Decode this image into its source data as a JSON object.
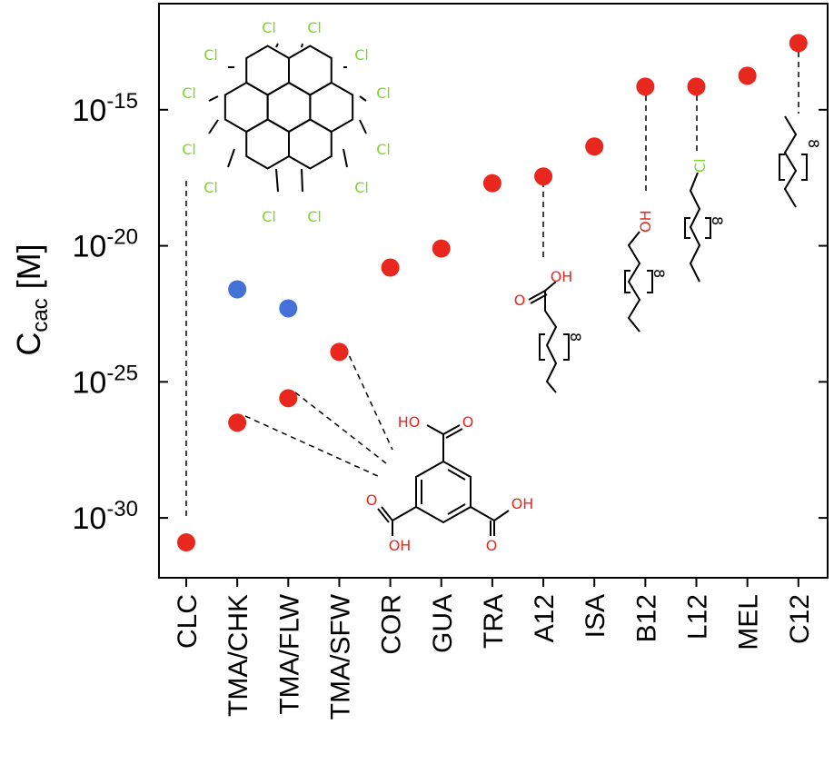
{
  "chart_data": {
    "type": "scatter",
    "ylabel_main": "C",
    "ylabel_sub": "cac",
    "ylabel_unit": " [M]",
    "y_scale": "log",
    "ylim_exponent": [
      -32.2,
      -11.1
    ],
    "y_ticks": [
      {
        "base": "10",
        "exp": "-15",
        "value": -15
      },
      {
        "base": "10",
        "exp": "-20",
        "value": -20
      },
      {
        "base": "10",
        "exp": "-25",
        "value": -25
      },
      {
        "base": "10",
        "exp": "-30",
        "value": -30
      }
    ],
    "categories": [
      "CLC",
      "TMA/CHK",
      "TMA/FLW",
      "TMA/SFW",
      "COR",
      "GUA",
      "TRA",
      "A12",
      "ISA",
      "B12",
      "L12",
      "MEL",
      "C12"
    ],
    "series": [
      {
        "color": "#e8281e",
        "points": [
          {
            "category": "CLC",
            "log10_value": -30.9
          },
          {
            "category": "TMA/CHK",
            "log10_value": -26.5
          },
          {
            "category": "TMA/FLW",
            "log10_value": -25.6
          },
          {
            "category": "TMA/SFW",
            "log10_value": -23.9
          },
          {
            "category": "COR",
            "log10_value": -20.8
          },
          {
            "category": "GUA",
            "log10_value": -20.1
          },
          {
            "category": "TRA",
            "log10_value": -17.7
          },
          {
            "category": "A12",
            "log10_value": -17.45
          },
          {
            "category": "ISA",
            "log10_value": -16.35
          },
          {
            "category": "B12",
            "log10_value": -14.15
          },
          {
            "category": "L12",
            "log10_value": -14.15
          },
          {
            "category": "MEL",
            "log10_value": -13.75
          },
          {
            "category": "C12",
            "log10_value": -12.55
          }
        ]
      },
      {
        "color": "#4472d8",
        "points": [
          {
            "category": "TMA/CHK",
            "log10_value": -21.6
          },
          {
            "category": "TMA/FLW",
            "log10_value": -22.3
          }
        ]
      }
    ],
    "grid": false,
    "legend": "none"
  },
  "structures": {
    "chlorinated_coronene": {
      "atom_label": "Cl"
    },
    "trimesic_acid": {
      "carbonyl": "O",
      "hydroxyl": "OH",
      "hydroxyl_rev": "HO"
    },
    "acid_chain": {
      "carbonyl": "O",
      "hydroxyl": "OH",
      "repeat": "8"
    },
    "alcohol_chain": {
      "hydroxyl": "OH",
      "repeat": "8"
    },
    "chloride_chain": {
      "atom_label": "Cl",
      "repeat": "8"
    },
    "alkane_chain": {
      "repeat": "8"
    }
  },
  "colors": {
    "red_marker": "#e8281e",
    "blue_marker": "#4472d8",
    "chlorine": "#7cd62a",
    "oxygen": "#e8281e"
  }
}
